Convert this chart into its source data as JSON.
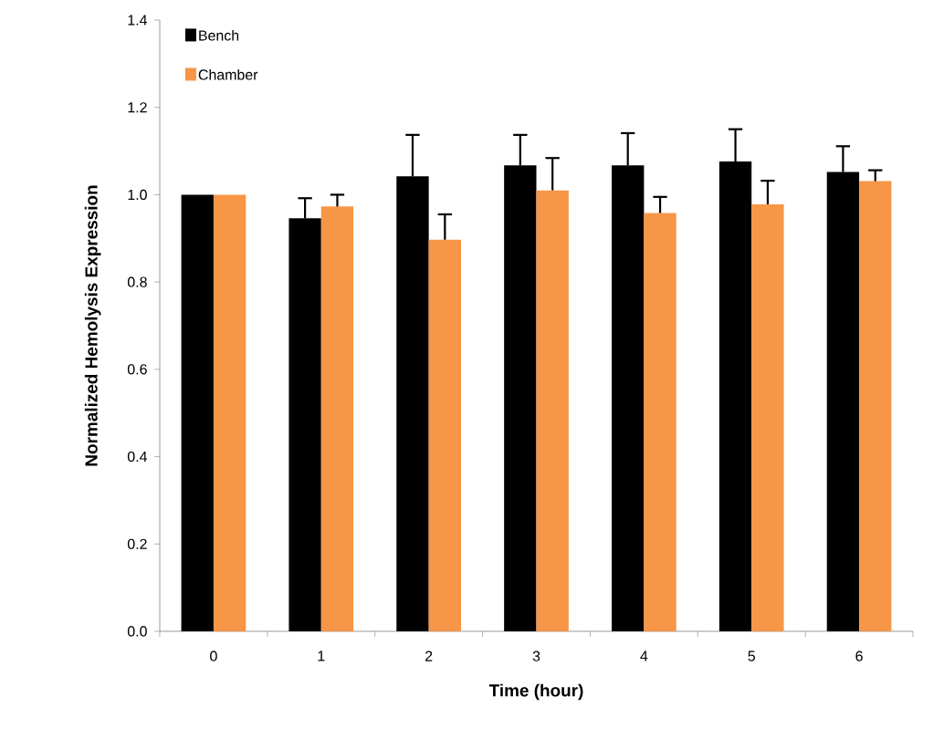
{
  "chart_data": {
    "type": "bar",
    "xlabel": "Time (hour)",
    "ylabel": "Normalized Hemolysis Expression",
    "categories": [
      "0",
      "1",
      "2",
      "3",
      "4",
      "5",
      "6"
    ],
    "series": [
      {
        "name": "Bench",
        "color": "#000000",
        "values": [
          1.0,
          0.946,
          1.042,
          1.067,
          1.067,
          1.076,
          1.052
        ],
        "errors": [
          null,
          [
            0.946,
            0.992
          ],
          [
            1.042,
            1.137
          ],
          [
            1.067,
            1.137
          ],
          [
            1.067,
            1.141
          ],
          [
            1.076,
            1.15
          ],
          [
            1.052,
            1.111
          ]
        ]
      },
      {
        "name": "Chamber",
        "color": "#f79646",
        "values": [
          1.0,
          0.973,
          0.897,
          1.01,
          0.958,
          0.978,
          1.031
        ],
        "errors": [
          null,
          [
            0.973,
            1.0
          ],
          [
            0.897,
            0.955
          ],
          [
            1.01,
            1.084
          ],
          [
            0.958,
            0.995
          ],
          [
            0.978,
            1.032
          ],
          [
            1.031,
            1.056
          ]
        ]
      }
    ],
    "ylim": [
      0,
      1.4
    ],
    "yticks": [
      {
        "value": 0,
        "label": "0.0"
      },
      {
        "value": 0.2,
        "label": "0.2"
      },
      {
        "value": 0.4,
        "label": "0.4"
      },
      {
        "value": 0.6,
        "label": "0.6"
      },
      {
        "value": 0.8,
        "label": "0.8"
      },
      {
        "value": 1.0,
        "label": "1.0"
      },
      {
        "value": 1.2,
        "label": "1.2"
      },
      {
        "value": 1.4,
        "label": "1.4"
      }
    ],
    "grid": false,
    "legend": "top left"
  }
}
